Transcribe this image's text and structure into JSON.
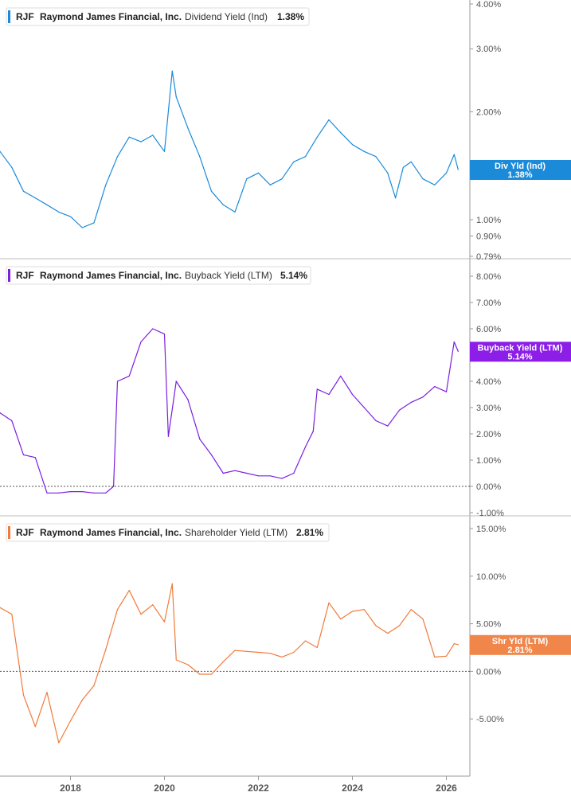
{
  "chart_data": [
    {
      "type": "line",
      "ticker": "RJF",
      "company": "Raymond James Financial, Inc.",
      "metric": "Dividend Yield (Ind)",
      "current_value": "1.38%",
      "badge_label": "Div Yld (Ind)",
      "badge_value": "1.38%",
      "color": "#1a8ad9",
      "badge_color": "#1a8ad9",
      "y_scale": "log",
      "ylim": [
        0.79,
        4.0
      ],
      "y_ticks": [
        {
          "v": 4.0,
          "label": "4.00%"
        },
        {
          "v": 3.0,
          "label": "3.00%"
        },
        {
          "v": 2.0,
          "label": "2.00%"
        },
        {
          "v": 1.0,
          "label": "1.00%"
        },
        {
          "v": 0.9,
          "label": "0.90%"
        },
        {
          "v": 0.79,
          "label": "0.79%"
        }
      ],
      "zero_line": false,
      "x": [
        "2016-07",
        "2016-10",
        "2017-01",
        "2017-04",
        "2017-07",
        "2017-10",
        "2018-01",
        "2018-04",
        "2018-07",
        "2018-10",
        "2019-01",
        "2019-04",
        "2019-07",
        "2019-10",
        "2020-01",
        "2020-03",
        "2020-04",
        "2020-07",
        "2020-10",
        "2021-01",
        "2021-04",
        "2021-07",
        "2021-10",
        "2022-01",
        "2022-04",
        "2022-07",
        "2022-10",
        "2023-01",
        "2023-04",
        "2023-07",
        "2023-10",
        "2024-01",
        "2024-04",
        "2024-07",
        "2024-10",
        "2024-12",
        "2025-02",
        "2025-04",
        "2025-07",
        "2025-10",
        "2026-01",
        "2026-03",
        "2026-04"
      ],
      "values": [
        1.55,
        1.4,
        1.2,
        1.15,
        1.1,
        1.05,
        1.02,
        0.95,
        0.98,
        1.25,
        1.5,
        1.7,
        1.65,
        1.72,
        1.55,
        2.6,
        2.2,
        1.8,
        1.5,
        1.2,
        1.1,
        1.05,
        1.3,
        1.35,
        1.25,
        1.3,
        1.45,
        1.5,
        1.7,
        1.9,
        1.75,
        1.62,
        1.55,
        1.5,
        1.35,
        1.15,
        1.4,
        1.45,
        1.3,
        1.25,
        1.35,
        1.52,
        1.38
      ]
    },
    {
      "type": "line",
      "ticker": "RJF",
      "company": "Raymond James Financial, Inc.",
      "metric": "Buyback Yield (LTM)",
      "current_value": "5.14%",
      "badge_label": "Buyback Yield (LTM)",
      "badge_value": "5.14%",
      "color": "#7b1fe0",
      "badge_color": "#8c1ee8",
      "y_scale": "linear",
      "ylim": [
        -1.0,
        8.0
      ],
      "y_ticks": [
        {
          "v": 8.0,
          "label": "8.00%"
        },
        {
          "v": 7.0,
          "label": "7.00%"
        },
        {
          "v": 6.0,
          "label": "6.00%"
        },
        {
          "v": 5.0,
          "label": "5.00%"
        },
        {
          "v": 4.0,
          "label": "4.00%"
        },
        {
          "v": 3.0,
          "label": "3.00%"
        },
        {
          "v": 2.0,
          "label": "2.00%"
        },
        {
          "v": 1.0,
          "label": "1.00%"
        },
        {
          "v": 0.0,
          "label": "0.00%"
        },
        {
          "v": -1.0,
          "label": "-1.00%"
        }
      ],
      "zero_line": true,
      "x": [
        "2016-07",
        "2016-10",
        "2017-01",
        "2017-04",
        "2017-07",
        "2017-10",
        "2018-01",
        "2018-04",
        "2018-07",
        "2018-10",
        "2018-12",
        "2019-01",
        "2019-04",
        "2019-07",
        "2019-10",
        "2020-01",
        "2020-02",
        "2020-04",
        "2020-07",
        "2020-10",
        "2021-01",
        "2021-04",
        "2021-07",
        "2021-10",
        "2022-01",
        "2022-04",
        "2022-07",
        "2022-10",
        "2023-01",
        "2023-03",
        "2023-04",
        "2023-07",
        "2023-10",
        "2024-01",
        "2024-04",
        "2024-07",
        "2024-10",
        "2025-01",
        "2025-04",
        "2025-07",
        "2025-10",
        "2026-01",
        "2026-03",
        "2026-04"
      ],
      "values": [
        2.8,
        2.5,
        1.2,
        1.1,
        -0.25,
        -0.25,
        -0.2,
        -0.2,
        -0.25,
        -0.25,
        0.0,
        4.0,
        4.2,
        5.5,
        6.0,
        5.8,
        1.9,
        4.0,
        3.3,
        1.8,
        1.2,
        0.5,
        0.6,
        0.5,
        0.4,
        0.4,
        0.3,
        0.5,
        1.5,
        2.1,
        3.7,
        3.5,
        4.2,
        3.5,
        3.0,
        2.5,
        2.3,
        2.9,
        3.2,
        3.4,
        3.8,
        3.6,
        5.5,
        5.14
      ]
    },
    {
      "type": "line",
      "ticker": "RJF",
      "company": "Raymond James Financial, Inc.",
      "metric": "Shareholder Yield (LTM)",
      "current_value": "2.81%",
      "badge_label": "Shr Yld (LTM)",
      "badge_value": "2.81%",
      "color": "#f07a3a",
      "badge_color": "#f0864a",
      "y_scale": "linear",
      "ylim": [
        -9.5,
        15.0
      ],
      "y_ticks": [
        {
          "v": 15.0,
          "label": "15.00%"
        },
        {
          "v": 10.0,
          "label": "10.00%"
        },
        {
          "v": 5.0,
          "label": "5.00%"
        },
        {
          "v": 0.0,
          "label": "0.00%"
        },
        {
          "v": -5.0,
          "label": "-5.00%"
        }
      ],
      "zero_line": true,
      "x": [
        "2016-07",
        "2016-10",
        "2017-01",
        "2017-04",
        "2017-07",
        "2017-10",
        "2018-01",
        "2018-04",
        "2018-07",
        "2018-10",
        "2019-01",
        "2019-04",
        "2019-07",
        "2019-10",
        "2020-01",
        "2020-03",
        "2020-04",
        "2020-07",
        "2020-10",
        "2021-01",
        "2021-04",
        "2021-07",
        "2021-10",
        "2022-01",
        "2022-04",
        "2022-07",
        "2022-10",
        "2023-01",
        "2023-04",
        "2023-07",
        "2023-10",
        "2024-01",
        "2024-04",
        "2024-07",
        "2024-10",
        "2025-01",
        "2025-04",
        "2025-07",
        "2025-10",
        "2026-01",
        "2026-03",
        "2026-04"
      ],
      "values": [
        6.7,
        6.0,
        -2.5,
        -5.8,
        -2.2,
        -7.5,
        -5.2,
        -3.0,
        -1.5,
        2.3,
        6.5,
        8.5,
        6.0,
        7.0,
        5.2,
        9.2,
        1.2,
        0.7,
        -0.3,
        -0.3,
        1.0,
        2.2,
        2.1,
        2.0,
        1.9,
        1.5,
        2.0,
        3.2,
        2.5,
        7.2,
        5.5,
        6.3,
        6.5,
        4.8,
        4.0,
        4.8,
        6.5,
        5.5,
        1.5,
        1.6,
        2.9,
        2.81
      ]
    }
  ],
  "x_axis": {
    "ticks": [
      {
        "date": "2018-01",
        "label": "2018"
      },
      {
        "date": "2020-01",
        "label": "2020"
      },
      {
        "date": "2022-01",
        "label": "2022"
      },
      {
        "date": "2024-01",
        "label": "2024"
      },
      {
        "date": "2026-01",
        "label": "2026"
      }
    ],
    "xlim": [
      "2016-07",
      "2026-07"
    ]
  }
}
